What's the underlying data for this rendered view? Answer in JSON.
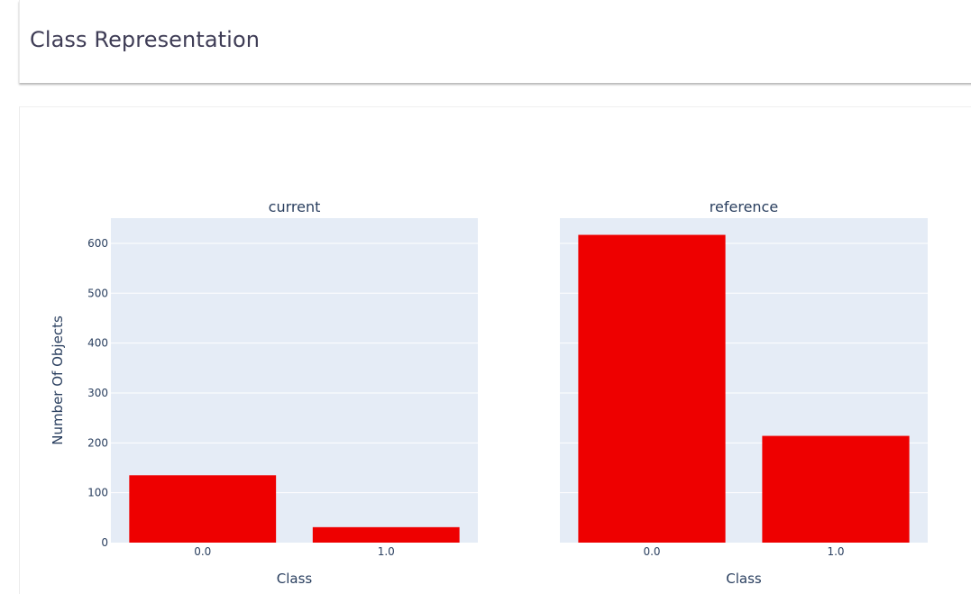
{
  "page": {
    "title": "Class Representation"
  },
  "chart_data": {
    "type": "bar",
    "subplots": [
      {
        "title": "current",
        "categories": [
          "0.0",
          "1.0"
        ],
        "values": [
          135,
          31
        ],
        "xlabel": "Class"
      },
      {
        "title": "reference",
        "categories": [
          "0.0",
          "1.0"
        ],
        "values": [
          617,
          214
        ],
        "xlabel": "Class"
      }
    ],
    "ylabel": "Number Of Objects",
    "ylim": [
      0,
      650
    ],
    "yticks": [
      0,
      100,
      200,
      300,
      400,
      500,
      600
    ],
    "shared_y": true,
    "grid": true,
    "colors": {
      "bar": "#ee0000",
      "plot_bg": "#e5ecf6",
      "grid": "#ffffff",
      "text": "#2a3f5f"
    }
  }
}
